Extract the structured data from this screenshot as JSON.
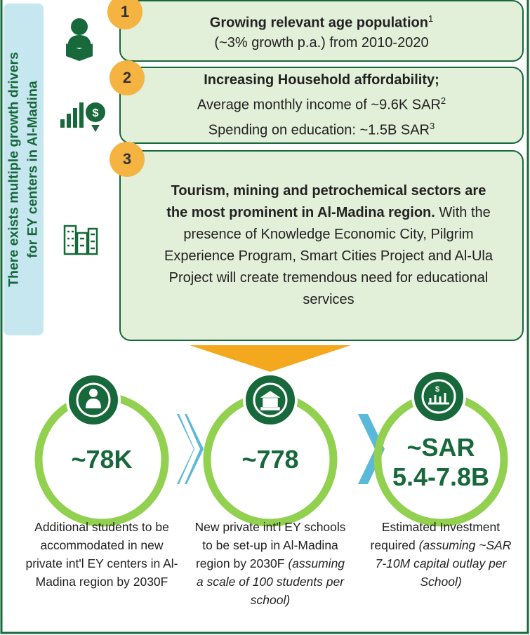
{
  "sidebar": {
    "lines": [
      "There exists multiple growth drivers",
      "for EY centers in Al-Madina"
    ]
  },
  "drivers": [
    {
      "number": "1",
      "title": "Growing relevant age population",
      "title_sup": "1",
      "lines": [
        {
          "text": "(~3% growth p.a.) from 2010-2020"
        }
      ]
    },
    {
      "number": "2",
      "title": "Increasing Household affordability;",
      "lines": [
        {
          "text": "Average monthly income of ~9.6K SAR",
          "sup": "2"
        },
        {
          "text": "Spending on education: ~1.5B SAR",
          "sup": "3"
        }
      ]
    },
    {
      "number": "3",
      "title": "Tourism, mining and petrochemical sectors are the most prominent in Al-Madina region.",
      "text": "With the presence of Knowledge Economic City, Pilgrim Experience Program, Smart Cities Project and Al-Ula Project will create tremendous need for educational services"
    }
  ],
  "metrics": [
    {
      "value": [
        "~78K"
      ],
      "description": "Additional students to be accommodated in new private int'l EY centers in Al-Madina region by 2030F"
    },
    {
      "value": [
        "~778"
      ],
      "description": "New private int'l EY schools to be set-up in Al-Madina region by 2030F",
      "note": "(assuming a scale of 100 students per school)"
    },
    {
      "value": [
        "~SAR",
        "5.4-7.8B"
      ],
      "description": "Estimated Investment required",
      "note": "(assuming ~SAR 7-10M capital outlay per School)"
    }
  ]
}
